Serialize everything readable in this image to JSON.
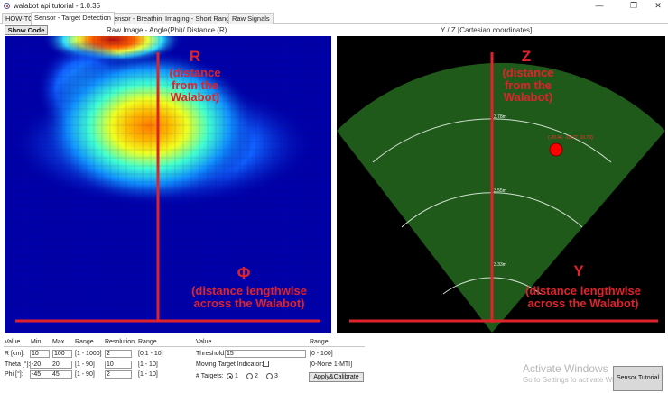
{
  "window": {
    "title": "walabot api tutorial - 1.0.35",
    "minimize": "—",
    "maximize": "❐",
    "close": "✕"
  },
  "tabs": [
    {
      "label": "HOW-TO",
      "active": false
    },
    {
      "label": "Sensor - Target Detection",
      "active": true
    },
    {
      "label": "Sensor - Breathing",
      "active": false
    },
    {
      "label": "Imaging - Short Range",
      "active": false
    },
    {
      "label": "Raw Signals",
      "active": false
    }
  ],
  "show_code_label": "Show Code",
  "raw_panel": {
    "title": "Raw Image - Angle(Phi)/ Distance (R)",
    "annotation_r_symbol": "R",
    "annotation_r_text": [
      "(distance",
      "from the",
      "Walabot)"
    ],
    "annotation_phi_symbol": "Φ",
    "annotation_phi_text": [
      "(distance lengthwise",
      "across the Walabot)"
    ]
  },
  "cart_panel": {
    "title": "Y / Z [Cartesian coordinates]",
    "annotation_z_symbol": "Z",
    "annotation_z_text": [
      "(distance",
      "from the",
      "Walabot)"
    ],
    "annotation_y_symbol": "Y",
    "annotation_y_text": [
      "(distance lengthwise",
      "across the Walabot)"
    ],
    "arc_labels": [
      "3.78m",
      "3.55m",
      "3.33m"
    ],
    "target_label": "(-20.44, -10.77, 10.70)",
    "colors": {
      "field": "#1f5a1a",
      "target": "#ff0000",
      "axis": "#e0232b",
      "arc": "#cfe0cf"
    }
  },
  "controls": {
    "header": {
      "value": "Value",
      "min": "Min",
      "max": "Max",
      "range": "Range",
      "resolution": "Resolution",
      "range2": "Range"
    },
    "rows": [
      {
        "label": "R [cm]:",
        "min": "10",
        "max": "100",
        "range": "[1 - 1000]",
        "resolution": "2",
        "res_range": "[0.1 - 10]"
      },
      {
        "label": "Theta [°]:",
        "min": "-20",
        "max": "20",
        "range": "[1 - 90]",
        "resolution": "10",
        "res_range": "[1 - 10]"
      },
      {
        "label": "Phi [°]:",
        "min": "-45",
        "max": "45",
        "range": "[1 - 90]",
        "resolution": "2",
        "res_range": "[1 - 10]"
      }
    ],
    "right_header": {
      "value": "Value",
      "range": "Range"
    },
    "threshold_label": "Threshold:",
    "threshold_value": "15",
    "threshold_range": "[0 - 100]",
    "mti_label": "Moving Target Indicator:",
    "mti_range": "[0-None 1-MTI]",
    "targets_label": "# Targets:",
    "target_options": [
      "1",
      "2",
      "3"
    ],
    "apply_label": "Apply&Calibrate"
  },
  "watermark": {
    "line1": "Activate Windows",
    "line2": "Go to Settings to activate Wi"
  },
  "sensor_tutorial_label": "Sensor Tutorial"
}
